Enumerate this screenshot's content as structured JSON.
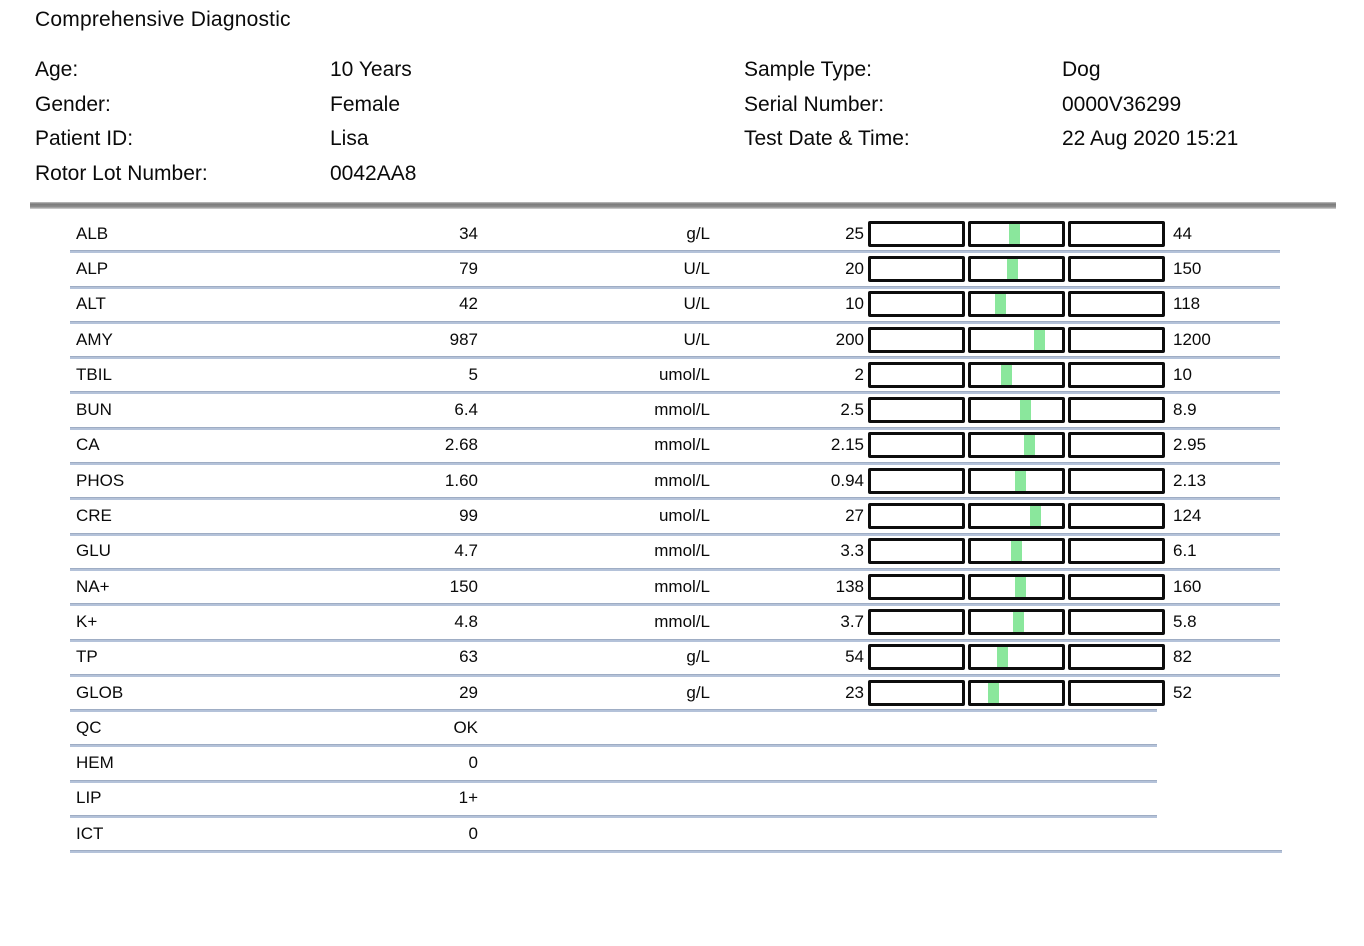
{
  "title": "Comprehensive Diagnostic",
  "patient_info": {
    "left": [
      {
        "label": "Age:",
        "value": "10 Years"
      },
      {
        "label": "Gender:",
        "value": "Female"
      },
      {
        "label": "Patient ID:",
        "value": "Lisa"
      },
      {
        "label": "Rotor Lot Number:",
        "value": "0042AA8"
      }
    ],
    "right": [
      {
        "label": "Sample Type:",
        "value": "Dog"
      },
      {
        "label": "Serial Number:",
        "value": "0000V36299"
      },
      {
        "label": "Test Date & Time:",
        "value": "22 Aug 2020 15:21"
      }
    ]
  },
  "chart_data": {
    "type": "table",
    "title": "Comprehensive Diagnostic",
    "columns": [
      "test",
      "value",
      "unit",
      "range_low",
      "range_high"
    ],
    "rows": [
      {
        "name": "ALB",
        "value": "34",
        "unit": "g/L",
        "low": "25",
        "high": "44"
      },
      {
        "name": "ALP",
        "value": "79",
        "unit": "U/L",
        "low": "20",
        "high": "150"
      },
      {
        "name": "ALT",
        "value": "42",
        "unit": "U/L",
        "low": "10",
        "high": "118"
      },
      {
        "name": "AMY",
        "value": "987",
        "unit": "U/L",
        "low": "200",
        "high": "1200"
      },
      {
        "name": "TBIL",
        "value": "5",
        "unit": "umol/L",
        "low": "2",
        "high": "10"
      },
      {
        "name": "BUN",
        "value": "6.4",
        "unit": "mmol/L",
        "low": "2.5",
        "high": "8.9"
      },
      {
        "name": "CA",
        "value": "2.68",
        "unit": "mmol/L",
        "low": "2.15",
        "high": "2.95"
      },
      {
        "name": "PHOS",
        "value": "1.60",
        "unit": "mmol/L",
        "low": "0.94",
        "high": "2.13"
      },
      {
        "name": "CRE",
        "value": "99",
        "unit": "umol/L",
        "low": "27",
        "high": "124"
      },
      {
        "name": "GLU",
        "value": "4.7",
        "unit": "mmol/L",
        "low": "3.3",
        "high": "6.1"
      },
      {
        "name": "NA+",
        "value": "150",
        "unit": "mmol/L",
        "low": "138",
        "high": "160"
      },
      {
        "name": "K+",
        "value": "4.8",
        "unit": "mmol/L",
        "low": "3.7",
        "high": "5.8"
      },
      {
        "name": "TP",
        "value": "63",
        "unit": "g/L",
        "low": "54",
        "high": "82"
      },
      {
        "name": "GLOB",
        "value": "29",
        "unit": "g/L",
        "low": "23",
        "high": "52"
      },
      {
        "name": "QC",
        "value": "OK"
      },
      {
        "name": "HEM",
        "value": "0"
      },
      {
        "name": "LIP",
        "value": "1+"
      },
      {
        "name": "ICT",
        "value": "0"
      }
    ]
  },
  "colors": {
    "marker-green": "#8ae79c",
    "separator-blue": "#b4c2d9",
    "divider-gray": "#7a7a7a",
    "box-border": "#0d0d0d"
  }
}
